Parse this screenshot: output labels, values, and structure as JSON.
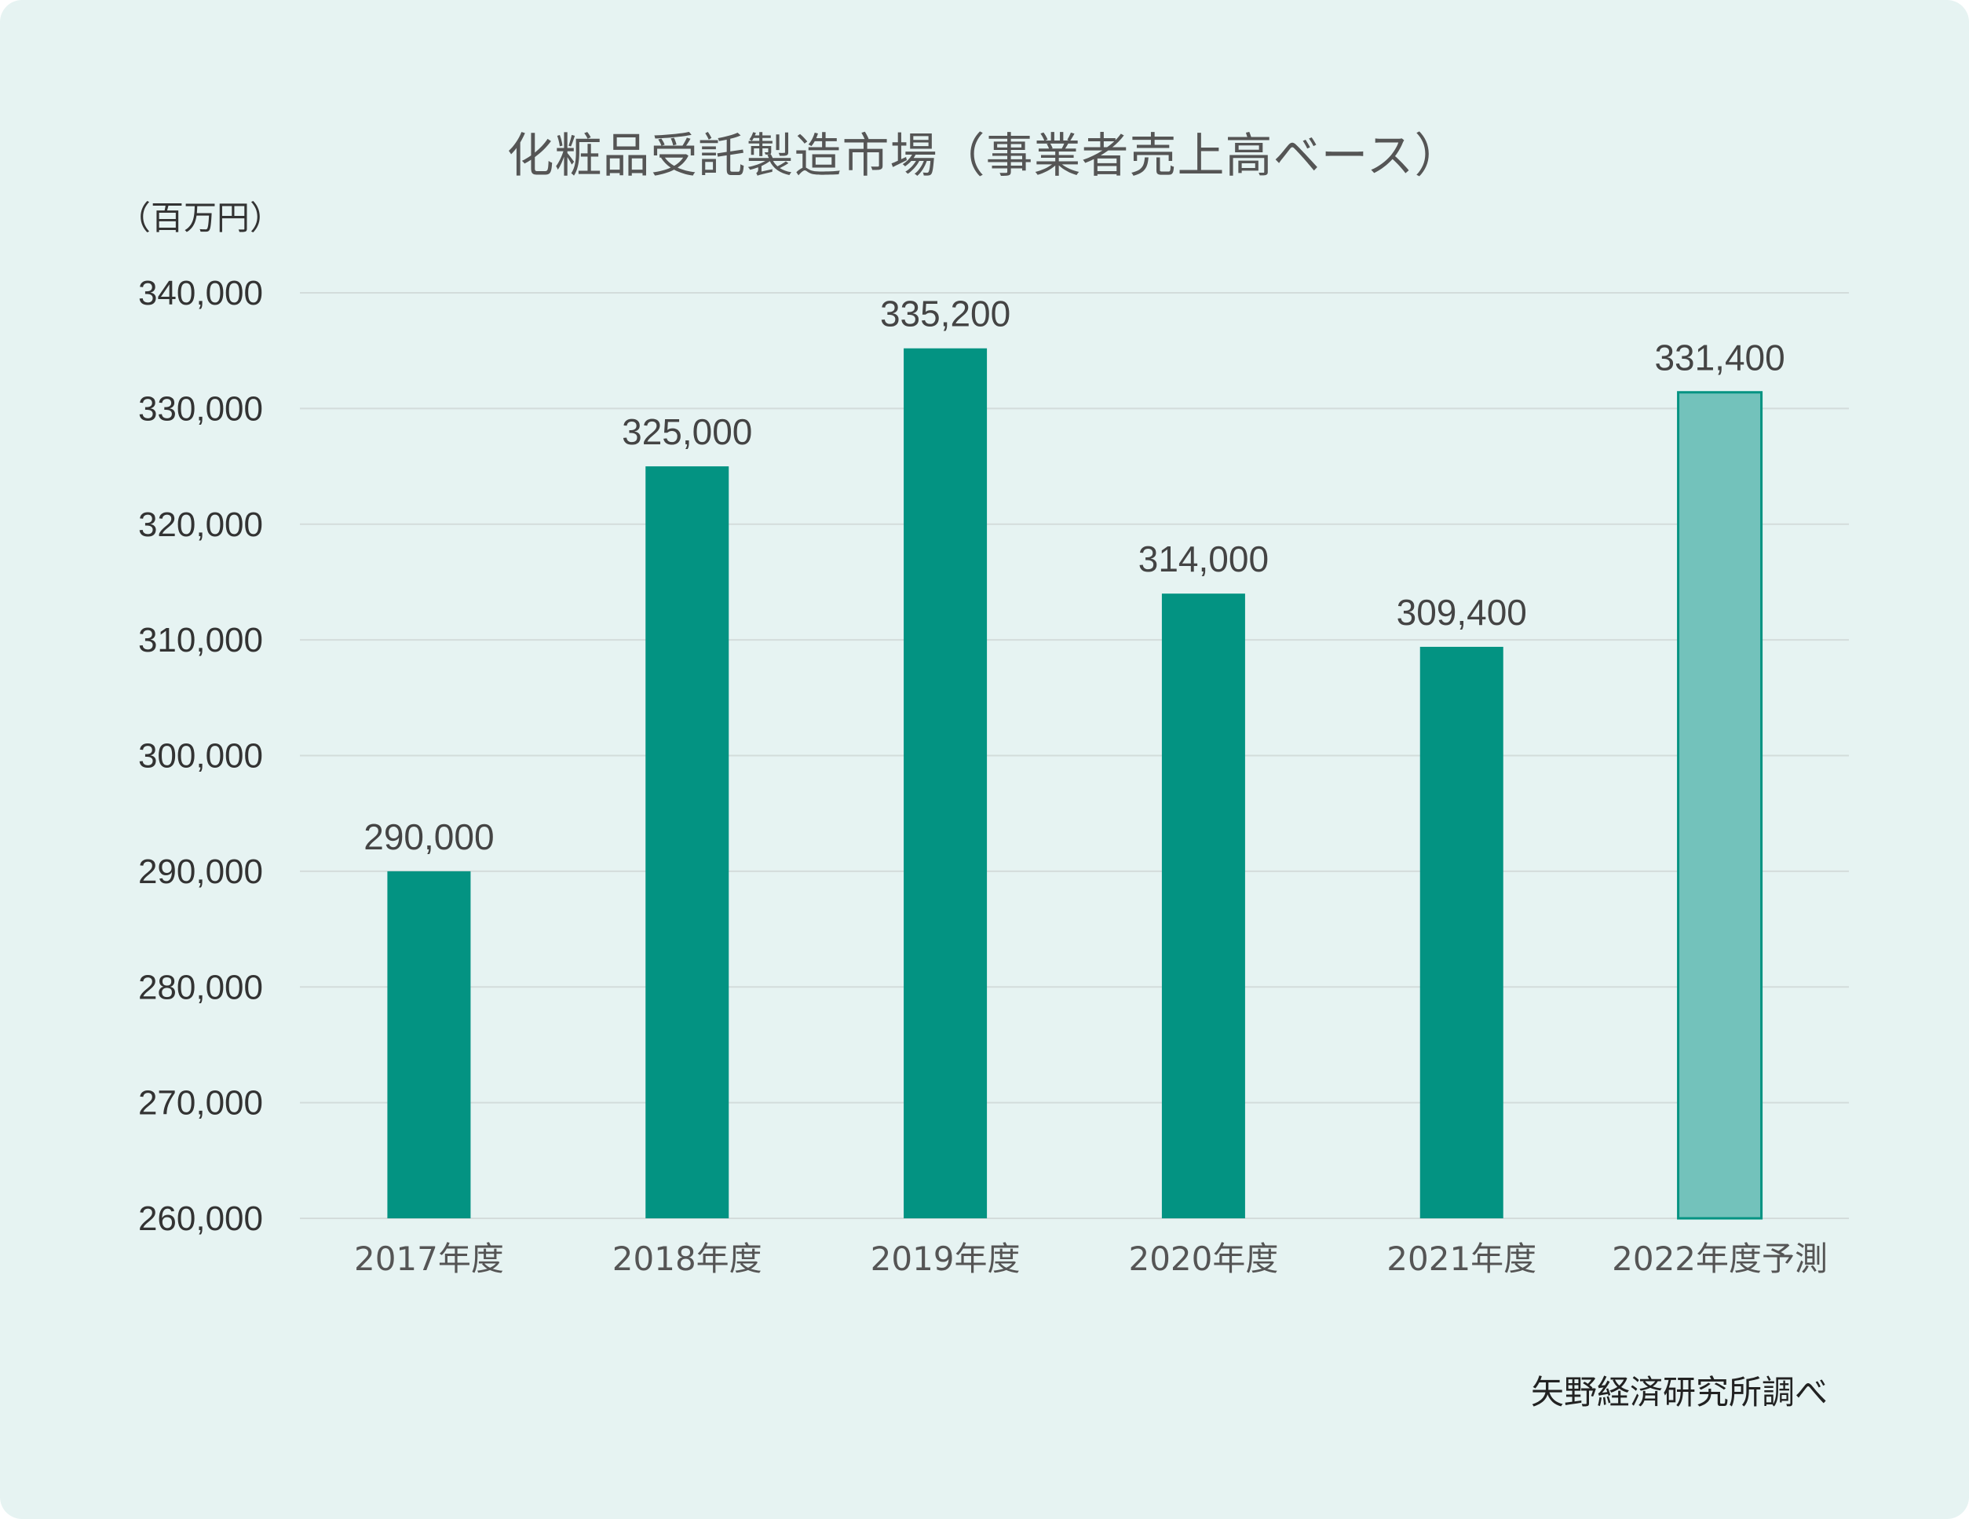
{
  "chart_data": {
    "type": "bar",
    "title": "化粧品受託製造市場（事業者売上高ベース）",
    "unit_label": "（百万円）",
    "source": "矢野経済研究所調べ",
    "categories": [
      "2017年度",
      "2018年度",
      "2019年度",
      "2020年度",
      "2021年度",
      "2022年度予測"
    ],
    "values": [
      290000,
      325000,
      335200,
      314000,
      309400,
      331400
    ],
    "value_labels": [
      "290,000",
      "325,000",
      "335,200",
      "314,000",
      "309,400",
      "331,400"
    ],
    "forecast_index": 5,
    "ylim": [
      260000,
      340000
    ],
    "yticks": [
      260000,
      270000,
      280000,
      290000,
      300000,
      310000,
      320000,
      330000,
      340000
    ],
    "ytick_labels": [
      "260,000",
      "270,000",
      "280,000",
      "290,000",
      "300,000",
      "310,000",
      "320,000",
      "330,000",
      "340,000"
    ],
    "grid": true,
    "colors": {
      "bar": "#039382",
      "forecast_bar": "#73c2bb",
      "forecast_stroke": "#039382",
      "grid": "#d3dcdb",
      "background": "#e6f3f2"
    }
  }
}
